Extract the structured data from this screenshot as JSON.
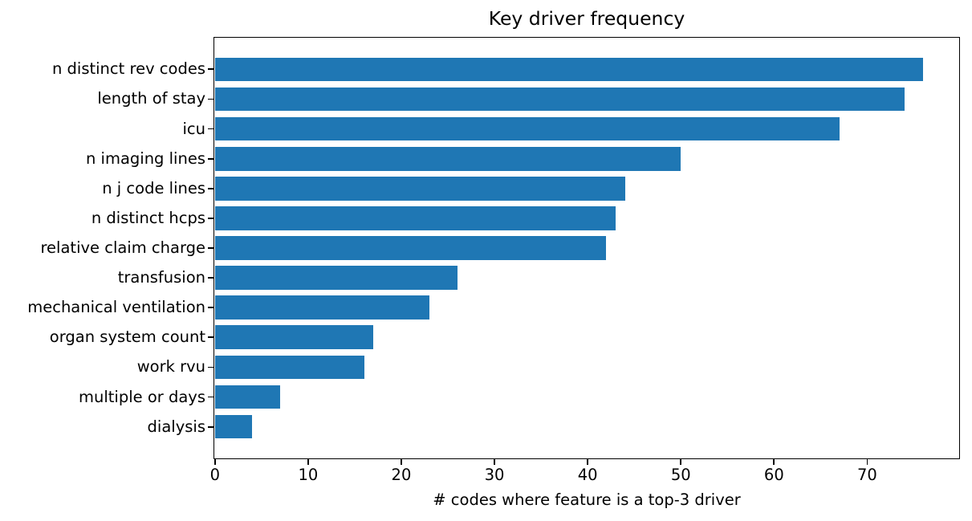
{
  "chart_data": {
    "type": "bar",
    "orientation": "horizontal",
    "title": "Key driver frequency",
    "xlabel": "# codes where feature is a top-3 driver",
    "ylabel": "",
    "categories": [
      "n distinct rev codes",
      "length of stay",
      "icu",
      "n imaging lines",
      "n j code lines",
      "n distinct hcps",
      "relative claim charge",
      "transfusion",
      "mechanical ventilation",
      "organ system count",
      "work rvu",
      "multiple or days",
      "dialysis"
    ],
    "values": [
      76,
      74,
      67,
      50,
      44,
      43,
      42,
      26,
      23,
      17,
      16,
      7,
      4
    ],
    "xticks": [
      0,
      10,
      20,
      30,
      40,
      50,
      60,
      70
    ],
    "xlim": [
      0,
      79.8
    ],
    "grid": false,
    "legend": null,
    "bar_color": "#1f77b4",
    "axis_color": "#000000",
    "background_color": "#ffffff"
  }
}
